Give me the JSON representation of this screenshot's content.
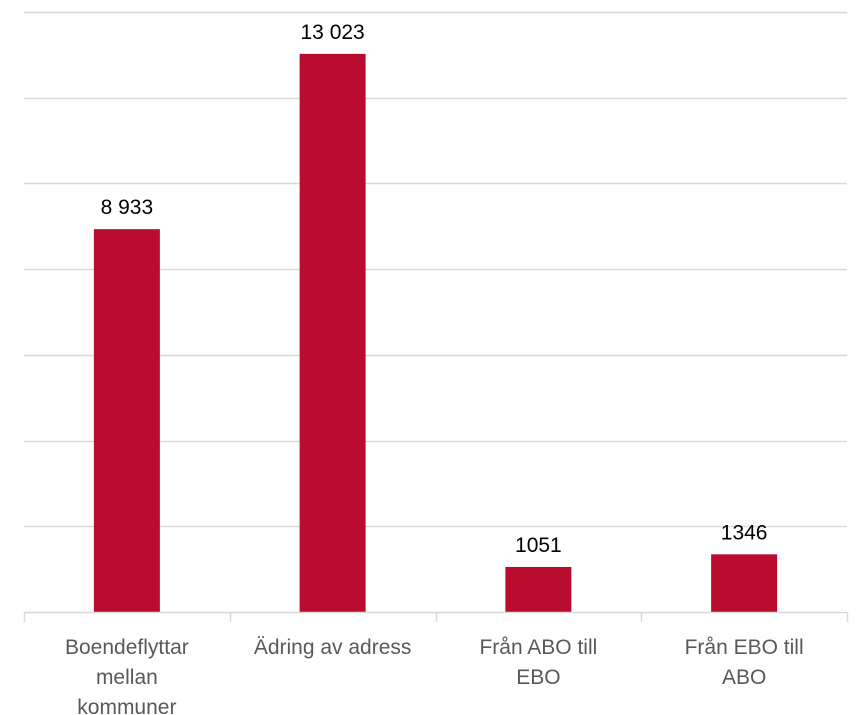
{
  "chart_data": {
    "type": "bar",
    "categories": [
      [
        "Boendeflyttar",
        "mellan",
        "kommuner"
      ],
      [
        "Ädring av adress"
      ],
      [
        "Från ABO till",
        "EBO"
      ],
      [
        "Från EBO till",
        "ABO"
      ]
    ],
    "values": [
      8933,
      13023,
      1051,
      1346
    ],
    "data_labels": [
      "8 933",
      "13 023",
      "1051",
      "1346"
    ],
    "ylim": [
      0,
      14000
    ],
    "grid": true,
    "legend": "none",
    "colors": {
      "bar": "#ba0c2f",
      "grid": "#d9d9d9",
      "axis": "#d9d9d9",
      "category_text": "#595959",
      "value_text": "#000000"
    }
  }
}
